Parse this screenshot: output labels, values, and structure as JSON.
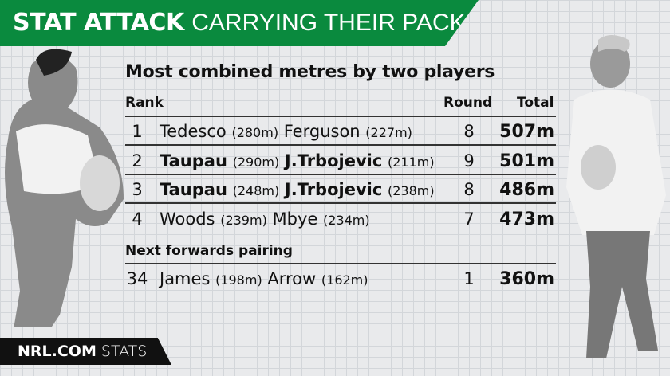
{
  "header": {
    "brand": "STAT ATTACK",
    "title": "CARRYING THEIR PACK"
  },
  "table": {
    "title": "Most combined metres by two players",
    "columns": [
      "Rank",
      "Round",
      "Total"
    ],
    "rows": [
      [
        "1",
        "Tedesco",
        "(280m)",
        "Ferguson",
        "(227m)",
        "8",
        "507m"
      ],
      [
        "2",
        "Taupau",
        "(290m)",
        "J.Trbojevic",
        "(211m)",
        "9",
        "501m"
      ],
      [
        "3",
        "Taupau",
        "(248m)",
        "J.Trbojevic",
        "(238m)",
        "8",
        "486m"
      ],
      [
        "4",
        "Woods",
        "(239m)",
        "Mbye",
        "(234m)",
        "7",
        "473m"
      ]
    ],
    "section": "Next forwards pairing",
    "extra_rows": [
      [
        "34",
        "James",
        "(198m)",
        "Arrow",
        "(162m)",
        "1",
        "360m"
      ]
    ]
  },
  "footer": {
    "brand": "NRL.COM",
    "label": "STATS"
  }
}
